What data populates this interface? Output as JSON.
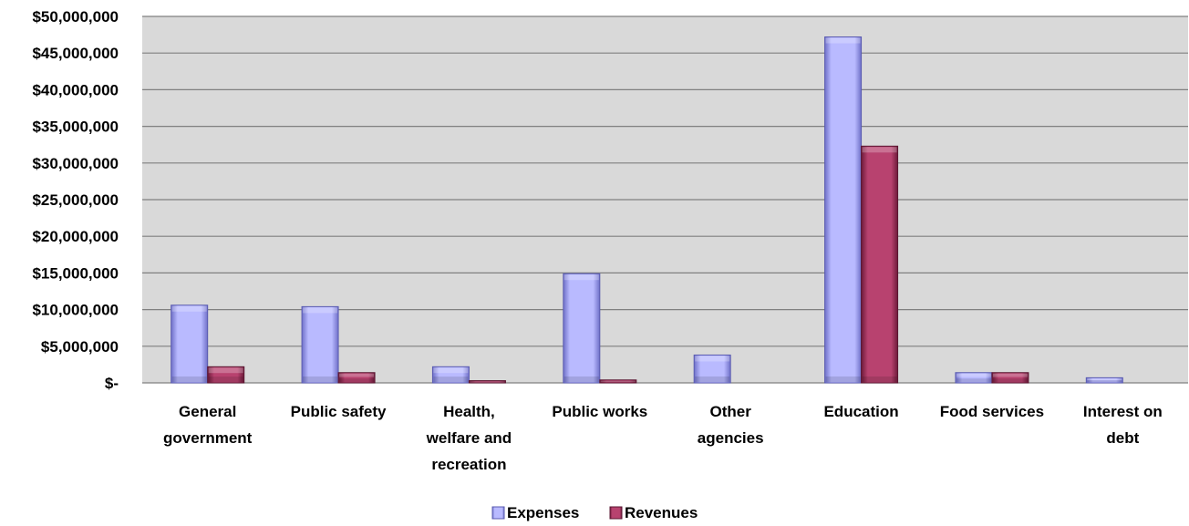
{
  "chart_data": {
    "type": "bar",
    "categories": [
      [
        "General",
        "government"
      ],
      [
        "Public safety"
      ],
      [
        "Health,",
        "welfare and",
        "recreation"
      ],
      [
        "Public works"
      ],
      [
        "Other",
        "agencies"
      ],
      [
        "Education"
      ],
      [
        "Food services"
      ],
      [
        "Interest on",
        "debt"
      ]
    ],
    "series": [
      {
        "name": "Expenses",
        "values": [
          10600000,
          10400000,
          2200000,
          14900000,
          3800000,
          47200000,
          1400000,
          700000
        ],
        "color": "#9b9cf0"
      },
      {
        "name": "Revenues",
        "values": [
          2200000,
          1400000,
          300000,
          400000,
          0,
          32300000,
          1400000,
          0
        ],
        "color": "#a8325f"
      }
    ],
    "ylim": [
      0,
      50000000
    ],
    "ytick_step": 5000000,
    "ytick_labels": [
      "$-",
      "$5,000,000",
      "$10,000,000",
      "$15,000,000",
      "$20,000,000",
      "$25,000,000",
      "$30,000,000",
      "$35,000,000",
      "$40,000,000",
      "$45,000,000",
      "$50,000,000"
    ],
    "grid": true,
    "plot_background": "#d9d9d9",
    "legend_position": "bottom"
  }
}
